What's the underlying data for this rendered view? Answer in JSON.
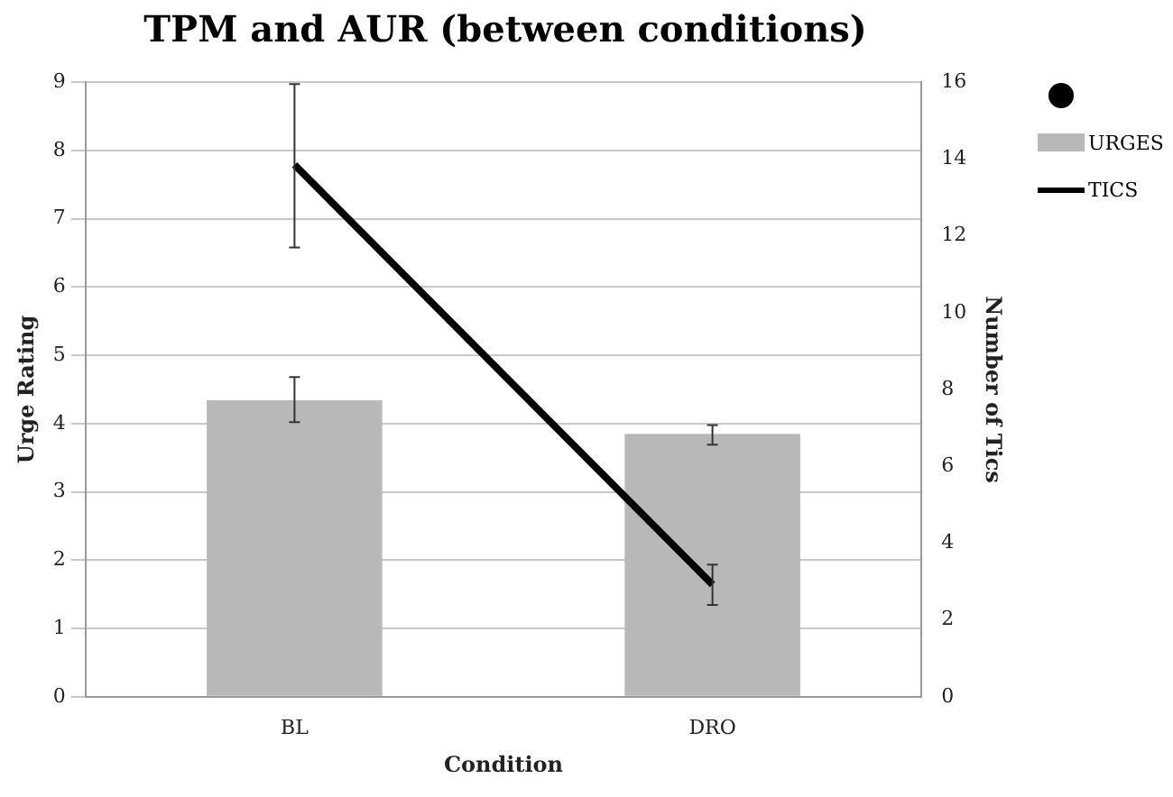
{
  "chart_data": {
    "type": "bar",
    "title": "TPM and AUR (between conditions)",
    "xlabel": "Condition",
    "ylabel": "Urge Rating",
    "y2label": "Number of Tics",
    "categories": [
      "BL",
      "DRO"
    ],
    "series": [
      {
        "name": "URGES",
        "color": "#b8b8b8",
        "values": [
          4.34,
          3.85
        ],
        "errors": [
          [
            4.02,
            4.68
          ],
          [
            3.69,
            3.98
          ]
        ]
      },
      {
        "name": "TICS",
        "type": "line",
        "axis": "y2",
        "color": "#000000",
        "values": [
          13.85,
          2.92
        ],
        "errors": [
          [
            11.7,
            15.95
          ],
          [
            2.39,
            3.44
          ]
        ]
      }
    ],
    "ylim": [
      0,
      9
    ],
    "yticks": [
      0,
      1,
      2,
      3,
      4,
      5,
      6,
      7,
      8,
      9
    ],
    "y2lim": [
      0,
      16
    ],
    "y2ticks": [
      0,
      2,
      4,
      6,
      8,
      10,
      12,
      14,
      16
    ],
    "grid": "y",
    "legend": "top right",
    "marker": "none"
  }
}
